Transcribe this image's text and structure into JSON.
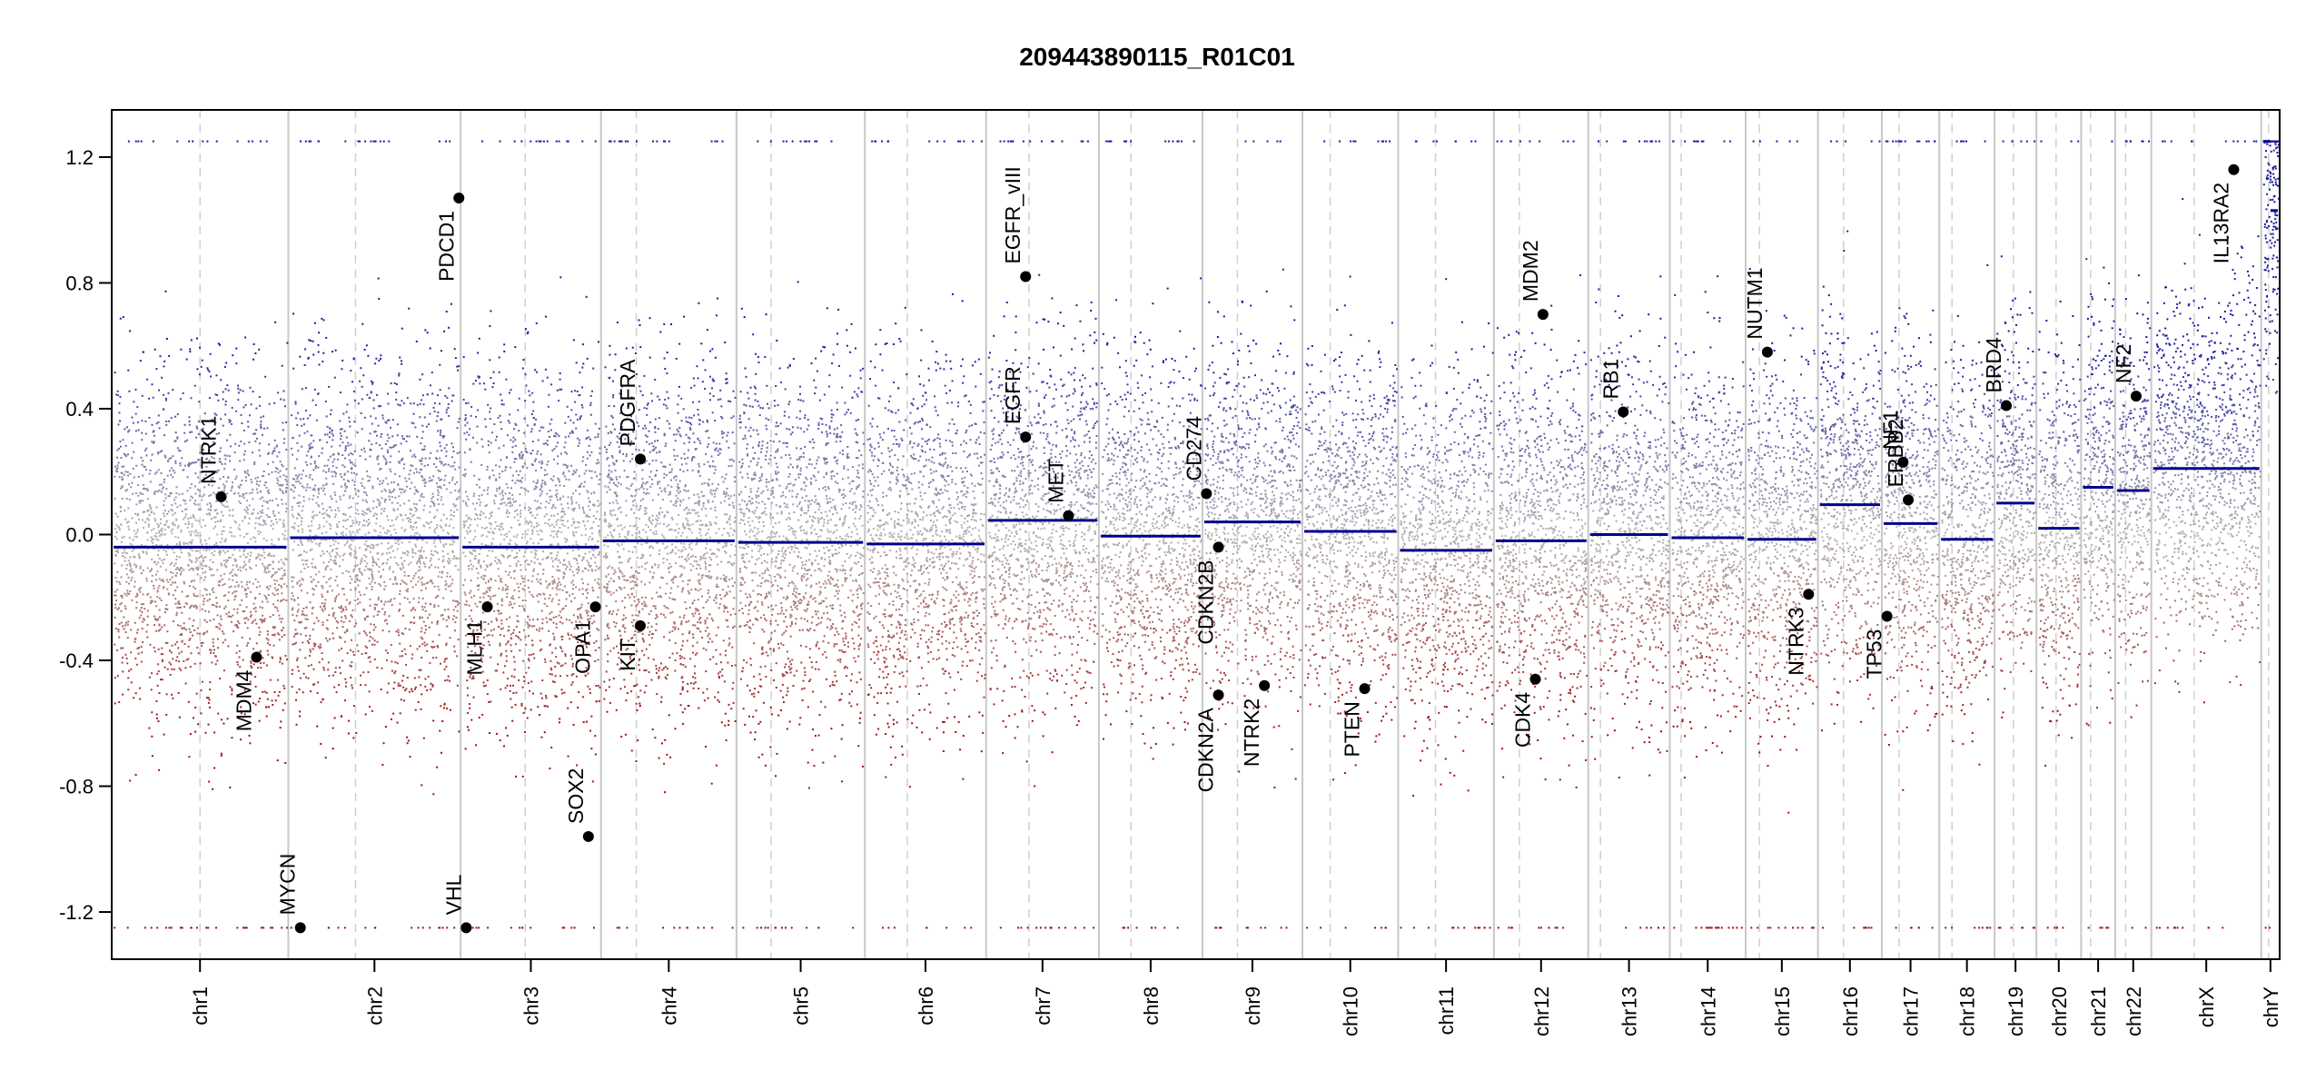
{
  "chart_data": {
    "type": "scatter",
    "title": "209443890115_R01C01",
    "xlabel": "",
    "ylabel": "",
    "ylim": [
      -1.35,
      1.35
    ],
    "y_ticks": [
      -1.2,
      -0.8,
      -0.4,
      0.0,
      0.4,
      0.8,
      1.2
    ],
    "y_tick_labels": [
      "-1.2",
      "-0.8",
      "-0.4",
      "0.0",
      "0.4",
      "0.8",
      "1.2"
    ],
    "grid": false,
    "legend": "none",
    "colors": {
      "gain": "#1a1aa0",
      "loss": "#a01010",
      "neutral": "#b4b4b4",
      "segment": "#00008b",
      "boundary": "#c8c8c8"
    },
    "chromosomes": [
      {
        "name": "chr1",
        "size": 249,
        "centromere": 0.5,
        "segment": -0.04
      },
      {
        "name": "chr2",
        "size": 243,
        "centromere": 0.39,
        "segment": -0.01
      },
      {
        "name": "chr3",
        "size": 198,
        "centromere": 0.46,
        "segment": -0.04
      },
      {
        "name": "chr4",
        "size": 191,
        "centromere": 0.26,
        "segment": -0.02
      },
      {
        "name": "chr5",
        "size": 181,
        "centromere": 0.27,
        "segment": -0.025
      },
      {
        "name": "chr6",
        "size": 171,
        "centromere": 0.35,
        "segment": -0.03
      },
      {
        "name": "chr7",
        "size": 159,
        "centromere": 0.38,
        "segment": 0.045
      },
      {
        "name": "chr8",
        "size": 146,
        "centromere": 0.31,
        "segment": -0.005
      },
      {
        "name": "chr9",
        "size": 141,
        "centromere": 0.35,
        "segment": 0.04
      },
      {
        "name": "chr10",
        "size": 135,
        "centromere": 0.29,
        "segment": 0.01
      },
      {
        "name": "chr11",
        "size": 135,
        "centromere": 0.39,
        "segment": -0.05
      },
      {
        "name": "chr12",
        "size": 133,
        "centromere": 0.27,
        "segment": -0.02
      },
      {
        "name": "chr13",
        "size": 115,
        "centromere": 0.15,
        "segment": 0.0
      },
      {
        "name": "chr14",
        "size": 107,
        "centromere": 0.15,
        "segment": -0.01
      },
      {
        "name": "chr15",
        "size": 102,
        "centromere": 0.19,
        "segment": -0.015
      },
      {
        "name": "chr16",
        "size": 90,
        "centromere": 0.4,
        "segment": 0.095
      },
      {
        "name": "chr17",
        "size": 81,
        "centromere": 0.3,
        "segment": 0.035
      },
      {
        "name": "chr18",
        "size": 78,
        "centromere": 0.23,
        "segment": -0.015
      },
      {
        "name": "chr19",
        "size": 59,
        "centromere": 0.45,
        "segment": 0.1
      },
      {
        "name": "chr20",
        "size": 63,
        "centromere": 0.44,
        "segment": 0.02
      },
      {
        "name": "chr21",
        "size": 48,
        "centromere": 0.28,
        "segment": 0.15
      },
      {
        "name": "chr22",
        "size": 51,
        "centromere": 0.29,
        "segment": 0.14
      },
      {
        "name": "chrX",
        "size": 155,
        "centromere": 0.39,
        "segment": 0.21
      },
      {
        "name": "chrY",
        "size": 26,
        "centromere": 0.4,
        "segment": [
          1.25,
          1.03
        ]
      }
    ],
    "genes": [
      {
        "name": "NTRK1",
        "chr": "chr1",
        "pos": 0.62,
        "value": 0.12,
        "label_side": "above"
      },
      {
        "name": "MDM4",
        "chr": "chr1",
        "pos": 0.82,
        "value": -0.39,
        "label_side": "below"
      },
      {
        "name": "MYCN",
        "chr": "chr2",
        "pos": 0.07,
        "value": -1.25,
        "label_side": "above"
      },
      {
        "name": "PDCD1",
        "chr": "chr2",
        "pos": 0.99,
        "value": 1.07,
        "label_side": "below"
      },
      {
        "name": "VHL",
        "chr": "chr3",
        "pos": 0.04,
        "value": -1.25,
        "label_side": "above"
      },
      {
        "name": "MLH1",
        "chr": "chr3",
        "pos": 0.19,
        "value": -0.23,
        "label_side": "below"
      },
      {
        "name": "SOX2",
        "chr": "chr3",
        "pos": 0.91,
        "value": -0.96,
        "label_side": "above"
      },
      {
        "name": "OPA1",
        "chr": "chr3",
        "pos": 0.96,
        "value": -0.23,
        "label_side": "below"
      },
      {
        "name": "PDGFRA",
        "chr": "chr4",
        "pos": 0.29,
        "value": 0.24,
        "label_side": "above"
      },
      {
        "name": "KIT",
        "chr": "chr4",
        "pos": 0.29,
        "value": -0.29,
        "label_side": "below"
      },
      {
        "name": "EGFR_vIII",
        "chr": "chr7",
        "pos": 0.35,
        "value": 0.82,
        "label_side": "above"
      },
      {
        "name": "EGFR",
        "chr": "chr7",
        "pos": 0.35,
        "value": 0.31,
        "label_side": "above"
      },
      {
        "name": "MET",
        "chr": "chr7",
        "pos": 0.73,
        "value": 0.06,
        "label_side": "above"
      },
      {
        "name": "CD274",
        "chr": "chr9",
        "pos": 0.04,
        "value": 0.13,
        "label_side": "above"
      },
      {
        "name": "CDKN2B",
        "chr": "chr9",
        "pos": 0.16,
        "value": -0.04,
        "label_side": "below"
      },
      {
        "name": "CDKN2A",
        "chr": "chr9",
        "pos": 0.16,
        "value": -0.51,
        "label_side": "below"
      },
      {
        "name": "NTRK2",
        "chr": "chr9",
        "pos": 0.62,
        "value": -0.48,
        "label_side": "below"
      },
      {
        "name": "PTEN",
        "chr": "chr10",
        "pos": 0.65,
        "value": -0.49,
        "label_side": "below"
      },
      {
        "name": "MDM2",
        "chr": "chr12",
        "pos": 0.52,
        "value": 0.7,
        "label_side": "above"
      },
      {
        "name": "CDK4",
        "chr": "chr12",
        "pos": 0.44,
        "value": -0.46,
        "label_side": "below"
      },
      {
        "name": "RB1",
        "chr": "chr13",
        "pos": 0.43,
        "value": 0.39,
        "label_side": "above"
      },
      {
        "name": "NUTM1",
        "chr": "chr15",
        "pos": 0.3,
        "value": 0.58,
        "label_side": "above"
      },
      {
        "name": "NTRK3",
        "chr": "chr15",
        "pos": 0.87,
        "value": -0.19,
        "label_side": "below"
      },
      {
        "name": "NF1",
        "chr": "chr17",
        "pos": 0.37,
        "value": 0.23,
        "label_side": "above"
      },
      {
        "name": "ERBB2",
        "chr": "chr17",
        "pos": 0.46,
        "value": 0.11,
        "label_side": "above"
      },
      {
        "name": "TP53",
        "chr": "chr17",
        "pos": 0.09,
        "value": -0.26,
        "label_side": "below"
      },
      {
        "name": "BRD4",
        "chr": "chr19",
        "pos": 0.28,
        "value": 0.41,
        "label_side": "above"
      },
      {
        "name": "NF2",
        "chr": "chr22",
        "pos": 0.58,
        "value": 0.44,
        "label_side": "above"
      },
      {
        "name": "IL13RA2",
        "chr": "chrX",
        "pos": 0.75,
        "value": 1.16,
        "label_side": "below"
      }
    ]
  }
}
